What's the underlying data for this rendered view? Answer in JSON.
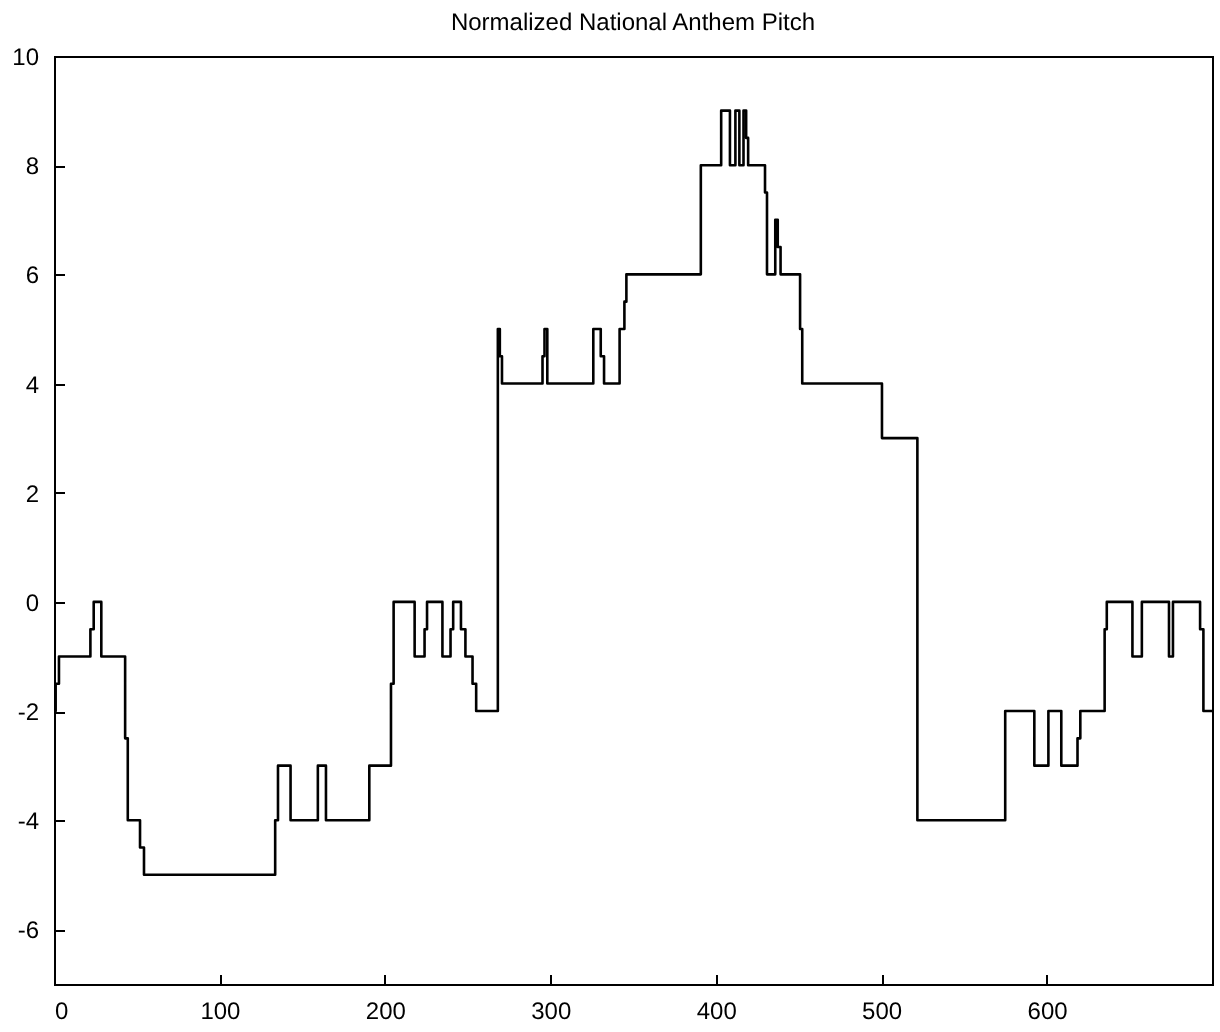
{
  "chart_data": {
    "type": "step",
    "title": "Normalized National Anthem Pitch",
    "x": [
      0,
      1,
      3,
      22,
      24,
      28.6,
      43,
      44.6,
      52,
      54.4,
      133.7,
      135.4,
      143,
      159.5,
      164.4,
      190.6,
      203.7,
      205.3,
      218,
      224,
      225.5,
      234.8,
      239.7,
      241.3,
      246,
      248.7,
      253,
      255.2,
      268.3,
      269.5,
      270.8,
      295.3,
      296.5,
      298.2,
      326,
      330.5,
      332.5,
      333.7,
      341.9,
      344.8,
      346,
      391,
      403.3,
      408.6,
      411.9,
      414.3,
      416.8,
      418.4,
      419.6,
      429.8,
      431,
      436,
      437.5,
      439.2,
      451,
      452.3,
      500.5,
      521.9,
      575,
      592.6,
      601.1,
      608.9,
      618.7,
      620.4,
      635.1,
      636.4,
      651.9,
      657.6,
      674,
      676.4,
      692.8,
      694.8,
      700
    ],
    "series": [
      {
        "color": "#000000",
        "values": [
          -2,
          -1.5,
          -1,
          -0.5,
          0,
          -1,
          -2.5,
          -4,
          -4.5,
          -5,
          -4,
          -3,
          -4,
          -3,
          -4,
          -3,
          -1.5,
          0,
          -1,
          -0.5,
          0,
          -1,
          -0.5,
          0,
          -0.5,
          -1,
          -1.5,
          -2,
          5,
          4.5,
          4,
          4.5,
          5,
          4,
          5,
          4.5,
          4,
          4,
          5,
          5.5,
          6,
          8,
          9,
          8,
          9,
          8,
          9,
          8.5,
          8,
          7.5,
          6,
          7,
          6.5,
          6,
          5,
          4,
          3,
          -4,
          -2,
          -3,
          -2,
          -3,
          -2.5,
          -2,
          -0.5,
          0,
          -1,
          0,
          -1,
          0,
          -0.5,
          -2,
          -2
        ]
      }
    ],
    "xlim": [
      0,
      700
    ],
    "ylim": [
      -7,
      10
    ],
    "xticks": [
      0,
      100,
      200,
      300,
      400,
      500,
      600
    ],
    "yticks": [
      -6,
      -4,
      -2,
      0,
      2,
      4,
      6,
      8,
      10
    ],
    "grid": false
  }
}
